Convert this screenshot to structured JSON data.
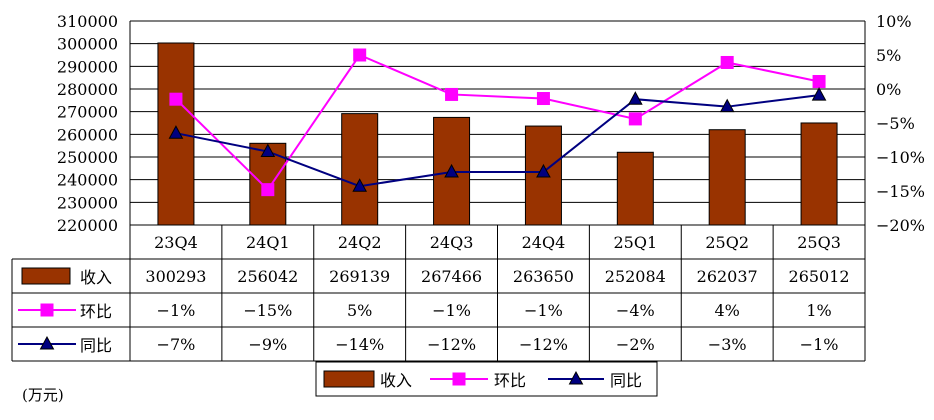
{
  "chart_data": {
    "type": "bar+line",
    "categories": [
      "23Q4",
      "24Q1",
      "24Q2",
      "24Q3",
      "24Q4",
      "25Q1",
      "25Q2",
      "25Q3"
    ],
    "series": [
      {
        "name": "收入",
        "type": "bar",
        "axis": "left",
        "color": "#993300",
        "values": [
          300293,
          256042,
          269139,
          267466,
          263650,
          252084,
          262037,
          265012
        ],
        "labels": [
          "300293",
          "256042",
          "269139",
          "267466",
          "263650",
          "252084",
          "262037",
          "265012"
        ]
      },
      {
        "name": "环比",
        "type": "line",
        "axis": "right",
        "color": "#ff00ff",
        "marker": "square",
        "values": [
          -1.5,
          -14.8,
          5.0,
          -0.8,
          -1.4,
          -4.4,
          3.9,
          1.1
        ],
        "labels": [
          "−1%",
          "−15%",
          "5%",
          "−1%",
          "−1%",
          "−4%",
          "4%",
          "1%"
        ]
      },
      {
        "name": "同比",
        "type": "line",
        "axis": "right",
        "color": "#000080",
        "marker": "triangle",
        "values": [
          -6.5,
          -9.2,
          -14.3,
          -12.2,
          -12.2,
          -1.5,
          -2.6,
          -0.9
        ],
        "labels": [
          "−7%",
          "−9%",
          "−14%",
          "−12%",
          "−12%",
          "−2%",
          "−3%",
          "−1%"
        ]
      }
    ],
    "y_left": {
      "min": 220000,
      "max": 310000,
      "step": 10000,
      "ticks": [
        "220000",
        "230000",
        "240000",
        "250000",
        "260000",
        "270000",
        "280000",
        "290000",
        "300000",
        "310000"
      ]
    },
    "y_right": {
      "min": -20,
      "max": 10,
      "step": 5,
      "ticks": [
        "−20%",
        "−15%",
        "−10%",
        "−5%",
        "0%",
        "5%",
        "10%"
      ]
    },
    "unit_label": "(万元)",
    "grid": true,
    "legend": "bottom",
    "has_data_table": true
  }
}
